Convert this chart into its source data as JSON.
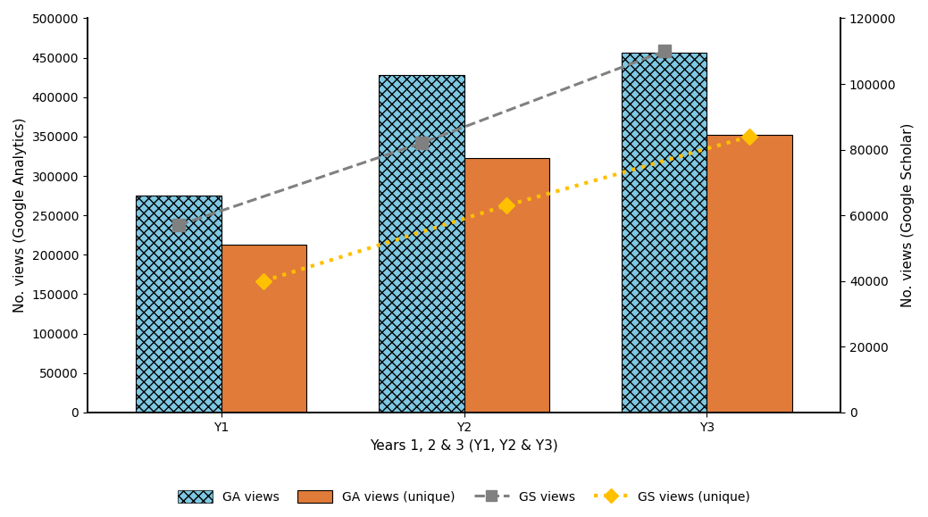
{
  "categories": [
    "Y1",
    "Y2",
    "Y3"
  ],
  "ga_views": [
    275000,
    428000,
    456000
  ],
  "ga_unique": [
    213000,
    323000,
    352000
  ],
  "gs_views": [
    57000,
    82000,
    110000
  ],
  "gs_unique": [
    40000,
    63000,
    84000
  ],
  "left_ylim": [
    0,
    500000
  ],
  "right_ylim": [
    0,
    120000
  ],
  "left_yticks": [
    0,
    50000,
    100000,
    150000,
    200000,
    250000,
    300000,
    350000,
    400000,
    450000,
    500000
  ],
  "right_yticks": [
    0,
    20000,
    40000,
    60000,
    80000,
    100000,
    120000
  ],
  "xlabel": "Years 1, 2 & 3 (Y1, Y2 & Y3)",
  "ylabel_left": "No. views (Google Analytics)",
  "ylabel_right": "No. views (Google Scholar)",
  "bar_color_ga": "#7EC8E3",
  "bar_color_unique": "#E07B39",
  "line_color_gs": "#808080",
  "line_color_gs_unique": "#FFC000",
  "background_color": "#FFFFFF",
  "legend_labels": [
    "GA views",
    "GA views (unique)",
    "GS views",
    "GS views (unique)"
  ],
  "bar_width": 0.35,
  "figsize": [
    10.39,
    5.79
  ],
  "dpi": 100
}
